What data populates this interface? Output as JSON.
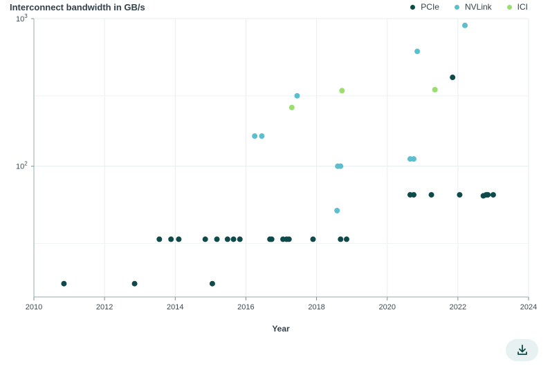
{
  "chart_data": {
    "type": "scatter",
    "title": "Interconnect bandwidth in GB/s",
    "xlabel": "Year",
    "ylabel": "",
    "xlim": [
      2010,
      2024
    ],
    "ylim": [
      13,
      1000
    ],
    "yscale": "log",
    "grid": true,
    "legend_position": "top-right",
    "x_ticks": [
      "2010",
      "2012",
      "2014",
      "2016",
      "2018",
      "2020",
      "2022",
      "2024"
    ],
    "y_ticks": [
      {
        "value": 100,
        "base": "10",
        "exp": "2"
      },
      {
        "value": 1000,
        "base": "10",
        "exp": "3"
      }
    ],
    "series": [
      {
        "name": "PCIe",
        "color": "#0d4a4a",
        "points": [
          [
            2010.85,
            16
          ],
          [
            2012.85,
            16
          ],
          [
            2013.55,
            32
          ],
          [
            2013.88,
            32
          ],
          [
            2014.1,
            32
          ],
          [
            2014.85,
            32
          ],
          [
            2015.05,
            16
          ],
          [
            2015.18,
            32
          ],
          [
            2015.48,
            32
          ],
          [
            2015.65,
            32
          ],
          [
            2015.83,
            32
          ],
          [
            2016.68,
            32
          ],
          [
            2016.73,
            32
          ],
          [
            2017.05,
            32
          ],
          [
            2017.15,
            32
          ],
          [
            2017.22,
            32
          ],
          [
            2017.9,
            32
          ],
          [
            2018.68,
            32
          ],
          [
            2018.85,
            32
          ],
          [
            2020.65,
            64
          ],
          [
            2020.75,
            64
          ],
          [
            2021.25,
            64
          ],
          [
            2021.85,
            400
          ],
          [
            2022.05,
            64
          ],
          [
            2022.72,
            63
          ],
          [
            2022.8,
            64
          ],
          [
            2022.85,
            64
          ],
          [
            2023.0,
            64
          ]
        ]
      },
      {
        "name": "NVLink",
        "color": "#5bbfd0",
        "points": [
          [
            2016.25,
            160
          ],
          [
            2016.45,
            160
          ],
          [
            2017.45,
            300
          ],
          [
            2018.58,
            50
          ],
          [
            2018.6,
            100
          ],
          [
            2018.68,
            100
          ],
          [
            2020.65,
            112
          ],
          [
            2020.75,
            112
          ],
          [
            2020.85,
            600
          ],
          [
            2022.2,
            900
          ]
        ]
      },
      {
        "name": "ICI",
        "color": "#9ade6e",
        "points": [
          [
            2017.3,
            250
          ],
          [
            2018.72,
            325
          ],
          [
            2021.35,
            330
          ]
        ]
      }
    ]
  },
  "download": {
    "icon": "download-icon"
  }
}
